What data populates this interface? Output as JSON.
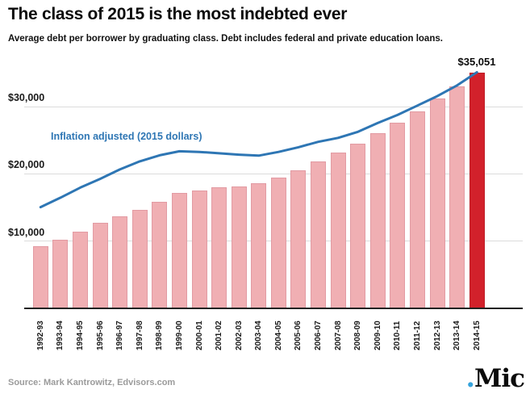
{
  "header": {
    "title": "The class of 2015 is the most indebted ever",
    "subtitle": "Average debt per borrower by graduating class. Debt includes federal and private education loans."
  },
  "footer": {
    "source": "Source: Mark Kantrowitz, Edvisors.com",
    "logo_dot": ".",
    "logo_text": "Mic"
  },
  "colors": {
    "bar_pink": "#f0afb3",
    "bar_pink_border": "#e29ba3",
    "bar_highlight": "#d2212b",
    "bar_highlight_border": "#be1e27",
    "line_blue": "#2e76b4",
    "grid": "#dbdbdb",
    "axis": "#222222",
    "text_dark": "#0b0b0b",
    "source_gray": "#9b9b9b",
    "logo_dot_blue": "#35a3dc"
  },
  "chart_data": {
    "type": "bar",
    "title": "The class of 2015 is the most indebted ever",
    "subtitle": "Average debt per borrower by graduating class. Debt includes federal and private education loans.",
    "xlabel": "",
    "ylabel": "",
    "ylim": [
      0,
      36000
    ],
    "grid": "horizontal",
    "legend_position": "inline label above line",
    "categories": [
      "1992-93",
      "1993-94",
      "1994-95",
      "1995-96",
      "1996-97",
      "1997-98",
      "1998-99",
      "1999-00",
      "2000-01",
      "2001-02",
      "2002-03",
      "2003-04",
      "2004-05",
      "2005-06",
      "2006-07",
      "2007-08",
      "2008-09",
      "2009-10",
      "2010-11",
      "2011-12",
      "2012-13",
      "2013-14",
      "2014-15"
    ],
    "yticks": [
      {
        "label": "$10,000",
        "value": 10000
      },
      {
        "label": "$20,000",
        "value": 20000
      },
      {
        "label": "$30,000",
        "value": 30000
      }
    ],
    "series": [
      {
        "name": "Average debt per borrower (nominal dollars)",
        "type": "bar",
        "values": [
          9200,
          10200,
          11400,
          12700,
          13600,
          14600,
          15800,
          17100,
          17500,
          17900,
          18100,
          18500,
          19400,
          20500,
          21800,
          23100,
          24400,
          26000,
          27500,
          29200,
          31100,
          33000,
          35051
        ]
      },
      {
        "name": "Inflation adjusted (2015 dollars)",
        "type": "line",
        "values": [
          15000,
          16400,
          17900,
          19200,
          20600,
          21800,
          22700,
          23300,
          23200,
          23000,
          22800,
          22650,
          23200,
          23900,
          24700,
          25300,
          26200,
          27500,
          28700,
          30100,
          31500,
          33100,
          35051
        ]
      }
    ],
    "line_label": "Inflation adjusted (2015 dollars)",
    "annotation": {
      "text": "$35,051",
      "target": "2014-15"
    },
    "highlighted_category": "2014-15"
  }
}
